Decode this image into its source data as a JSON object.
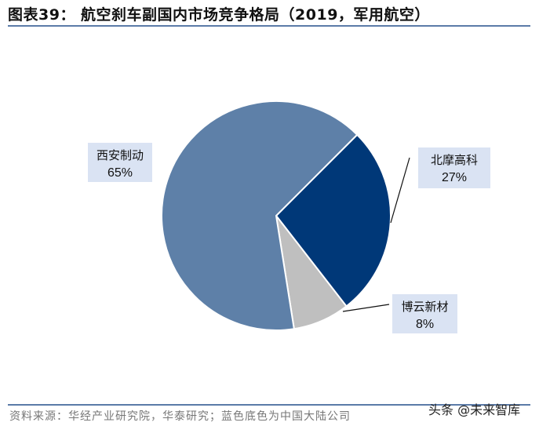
{
  "title": "图表39：  航空刹车副国内市场竞争格局（2019，军用航空）",
  "source": "资料来源：华经产业研究院，华泰研究；蓝色底色为中国大陆公司",
  "watermark": "头条 @未来智库",
  "chart_data": {
    "type": "pie",
    "title": "航空刹车副国内市场竞争格局（2019，军用航空）",
    "start_angle_deg": 45,
    "direction": "clockwise",
    "labels": [
      "北摩高科",
      "博云新材",
      "西安制动"
    ],
    "values": [
      27,
      8,
      65
    ],
    "value_labels": [
      "27%",
      "8%",
      "65%"
    ],
    "colors": [
      "#003878",
      "#bfbfbf",
      "#5e80a8"
    ],
    "label_box_color": "#dae3f3",
    "legend": "none"
  }
}
